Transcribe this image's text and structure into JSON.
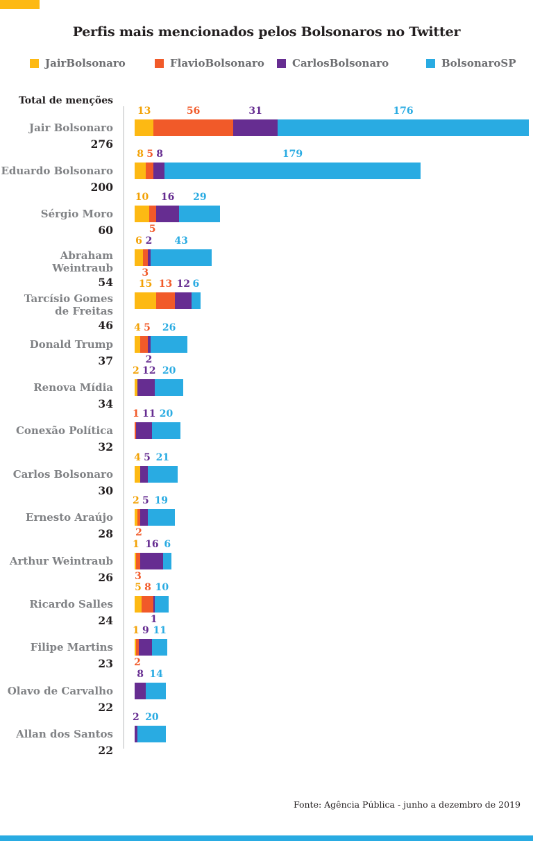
{
  "page": {
    "title": "Perfis mais mencionados pelos Bolsonaros no Twitter",
    "axis_heading": "Total de menções",
    "footer": "Fonte: Agência Pública - junho a dezembro de 2019"
  },
  "colors": {
    "accent_top": "#FDB913",
    "accent_bottom": "#29ABE2",
    "name_gray": "#808285",
    "text_black": "#231F20",
    "axis_line": "#DCDDDE"
  },
  "legend": [
    {
      "label": "JairBolsonaro",
      "color": "#FDB913",
      "label_color": "#F2A104"
    },
    {
      "label": "FlavioBolsonaro",
      "color": "#F15A29",
      "label_color": "#F15A29"
    },
    {
      "label": "CarlosBolsonaro",
      "color": "#662D91",
      "label_color": "#662D91"
    },
    {
      "label": "BolsonaroSP",
      "color": "#29ABE2",
      "label_color": "#29ABE2"
    }
  ],
  "chart_data": {
    "type": "bar",
    "orientation": "horizontal-stacked",
    "title": "Perfis mais mencionados pelos Bolsonaros no Twitter",
    "xlabel": "",
    "ylabel": "Total de menções",
    "xlim": [
      0,
      276
    ],
    "grid": false,
    "legend_position": "top",
    "series_order": [
      "JairBolsonaro",
      "FlavioBolsonaro",
      "CarlosBolsonaro",
      "BolsonaroSP"
    ],
    "rows": [
      {
        "name": "Jair Bolsonaro",
        "total": 276,
        "segments": [
          {
            "series": "JairBolsonaro",
            "value": 13
          },
          {
            "series": "FlavioBolsonaro",
            "value": 56
          },
          {
            "series": "CarlosBolsonaro",
            "value": 31
          },
          {
            "series": "BolsonaroSP",
            "value": 176
          }
        ]
      },
      {
        "name": "Eduardo Bolsonaro",
        "total": 200,
        "segments": [
          {
            "series": "JairBolsonaro",
            "value": 8
          },
          {
            "series": "FlavioBolsonaro",
            "value": 5
          },
          {
            "series": "CarlosBolsonaro",
            "value": 8
          },
          {
            "series": "BolsonaroSP",
            "value": 179
          }
        ]
      },
      {
        "name": "Sérgio Moro",
        "total": 60,
        "segments": [
          {
            "series": "JairBolsonaro",
            "value": 10
          },
          {
            "series": "FlavioBolsonaro",
            "value": 5,
            "label_below": true
          },
          {
            "series": "CarlosBolsonaro",
            "value": 16
          },
          {
            "series": "BolsonaroSP",
            "value": 29
          }
        ]
      },
      {
        "name": "Abraham Weintraub",
        "total": 54,
        "segments": [
          {
            "series": "JairBolsonaro",
            "value": 6
          },
          {
            "series": "FlavioBolsonaro",
            "value": 3,
            "label_below": true
          },
          {
            "series": "CarlosBolsonaro",
            "value": 2
          },
          {
            "series": "BolsonaroSP",
            "value": 43
          }
        ]
      },
      {
        "name": "Tarcísio Gomes\nde Freitas",
        "total": 46,
        "segments": [
          {
            "series": "JairBolsonaro",
            "value": 15
          },
          {
            "series": "FlavioBolsonaro",
            "value": 13
          },
          {
            "series": "CarlosBolsonaro",
            "value": 12
          },
          {
            "series": "BolsonaroSP",
            "value": 6
          }
        ]
      },
      {
        "name": "Donald Trump",
        "total": 37,
        "segments": [
          {
            "series": "JairBolsonaro",
            "value": 4
          },
          {
            "series": "FlavioBolsonaro",
            "value": 5
          },
          {
            "series": "CarlosBolsonaro",
            "value": 2,
            "label_below": true
          },
          {
            "series": "BolsonaroSP",
            "value": 26
          }
        ]
      },
      {
        "name": "Renova Mídia",
        "total": 34,
        "segments": [
          {
            "series": "JairBolsonaro",
            "value": 2
          },
          {
            "series": "CarlosBolsonaro",
            "value": 12
          },
          {
            "series": "BolsonaroSP",
            "value": 20
          }
        ]
      },
      {
        "name": "Conexão Política",
        "total": 32,
        "segments": [
          {
            "series": "FlavioBolsonaro",
            "value": 1
          },
          {
            "series": "CarlosBolsonaro",
            "value": 11
          },
          {
            "series": "BolsonaroSP",
            "value": 20
          }
        ]
      },
      {
        "name": "Carlos Bolsonaro",
        "total": 30,
        "segments": [
          {
            "series": "JairBolsonaro",
            "value": 4
          },
          {
            "series": "CarlosBolsonaro",
            "value": 5
          },
          {
            "series": "BolsonaroSP",
            "value": 21
          }
        ]
      },
      {
        "name": "Ernesto Araújo",
        "total": 28,
        "segments": [
          {
            "series": "JairBolsonaro",
            "value": 2
          },
          {
            "series": "FlavioBolsonaro",
            "value": 2,
            "label_below": true
          },
          {
            "series": "CarlosBolsonaro",
            "value": 5
          },
          {
            "series": "BolsonaroSP",
            "value": 19
          }
        ]
      },
      {
        "name": "Arthur Weintraub",
        "total": 26,
        "segments": [
          {
            "series": "JairBolsonaro",
            "value": 1
          },
          {
            "series": "FlavioBolsonaro",
            "value": 3,
            "label_below": true
          },
          {
            "series": "CarlosBolsonaro",
            "value": 16
          },
          {
            "series": "BolsonaroSP",
            "value": 6
          }
        ]
      },
      {
        "name": "Ricardo Salles",
        "total": 24,
        "segments": [
          {
            "series": "JairBolsonaro",
            "value": 5
          },
          {
            "series": "FlavioBolsonaro",
            "value": 8
          },
          {
            "series": "CarlosBolsonaro",
            "value": 1,
            "label_below": true
          },
          {
            "series": "BolsonaroSP",
            "value": 10
          }
        ]
      },
      {
        "name": "Filipe Martins",
        "total": 23,
        "segments": [
          {
            "series": "JairBolsonaro",
            "value": 1
          },
          {
            "series": "FlavioBolsonaro",
            "value": 2,
            "label_below": true
          },
          {
            "series": "CarlosBolsonaro",
            "value": 9
          },
          {
            "series": "BolsonaroSP",
            "value": 11
          }
        ]
      },
      {
        "name": "Olavo de Carvalho",
        "total": 22,
        "segments": [
          {
            "series": "CarlosBolsonaro",
            "value": 8
          },
          {
            "series": "BolsonaroSP",
            "value": 14
          }
        ]
      },
      {
        "name": "Allan dos Santos",
        "total": 22,
        "segments": [
          {
            "series": "CarlosBolsonaro",
            "value": 2
          },
          {
            "series": "BolsonaroSP",
            "value": 20
          }
        ]
      }
    ]
  }
}
